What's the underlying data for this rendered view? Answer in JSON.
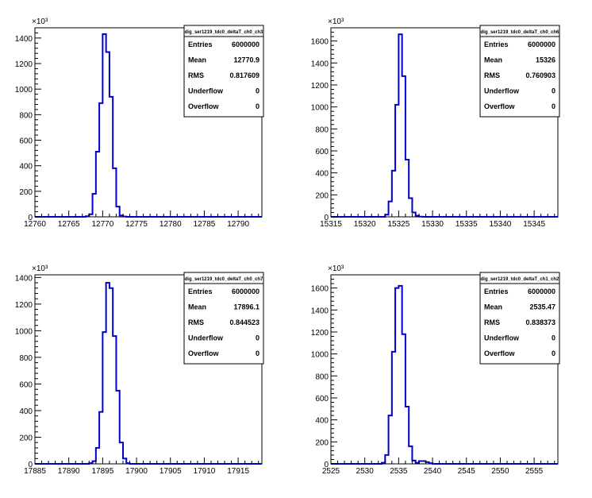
{
  "chart_data": [
    {
      "type": "bar",
      "title": "dig_ser1219_tdc0_deltaT_ch0_ch3",
      "ylabel_multiplier": "×10³",
      "xlim": [
        12760,
        12793.5
      ],
      "ylim": [
        0,
        1480
      ],
      "x_ticks": [
        "12760",
        "12765",
        "12770",
        "12775",
        "12780",
        "12785",
        "12790"
      ],
      "x_tick_values": [
        12760,
        12765,
        12770,
        12775,
        12780,
        12785,
        12790
      ],
      "y_ticks": [
        "0",
        "200",
        "400",
        "600",
        "800",
        "1000",
        "1200",
        "1400"
      ],
      "y_tick_values": [
        0,
        200,
        400,
        600,
        800,
        1000,
        1200,
        1400
      ],
      "bin_width": 0.5,
      "bins_start": [
        12767.5,
        12768,
        12768.5,
        12769,
        12769.5,
        12770,
        12770.5,
        12771,
        12771.5,
        12772,
        12772.5,
        12773
      ],
      "values": [
        5,
        20,
        180,
        510,
        890,
        1430,
        1290,
        940,
        380,
        80,
        10,
        2
      ],
      "stats": {
        "entries_label": "Entries",
        "entries": "6000000",
        "mean_label": "Mean",
        "mean": "12770.9",
        "rms_label": "RMS",
        "rms": "0.817609",
        "underflow_label": "Underflow",
        "underflow": "0",
        "overflow_label": "Overflow",
        "overflow": "0"
      }
    },
    {
      "type": "bar",
      "title": "dig_ser1219_tdc0_deltaT_ch0_ch6",
      "ylabel_multiplier": "×10³",
      "xlim": [
        15315,
        15348.5
      ],
      "ylim": [
        0,
        1720
      ],
      "x_ticks": [
        "15315",
        "15320",
        "15325",
        "15330",
        "15335",
        "15340",
        "15345"
      ],
      "x_tick_values": [
        15315,
        15320,
        15325,
        15330,
        15335,
        15340,
        15345
      ],
      "y_ticks": [
        "0",
        "200",
        "400",
        "600",
        "800",
        "1000",
        "1200",
        "1400",
        "1600"
      ],
      "y_tick_values": [
        0,
        200,
        400,
        600,
        800,
        1000,
        1200,
        1400,
        1600
      ],
      "bin_width": 0.5,
      "bins_start": [
        15323,
        15323.5,
        15324,
        15324.5,
        15325,
        15325.5,
        15326,
        15326.5,
        15327,
        15327.5,
        15328
      ],
      "values": [
        20,
        140,
        420,
        1020,
        1660,
        1280,
        520,
        170,
        40,
        10,
        2
      ],
      "stats": {
        "entries_label": "Entries",
        "entries": "6000000",
        "mean_label": "Mean",
        "mean": "15326",
        "rms_label": "RMS",
        "rms": "0.760903",
        "underflow_label": "Underflow",
        "underflow": "0",
        "overflow_label": "Overflow",
        "overflow": "0"
      }
    },
    {
      "type": "bar",
      "title": "dig_ser1219_tdc0_deltaT_ch0_ch7",
      "ylabel_multiplier": "×10³",
      "xlim": [
        17885,
        17918.5
      ],
      "ylim": [
        0,
        1420
      ],
      "x_ticks": [
        "17885",
        "17890",
        "17895",
        "17900",
        "17905",
        "17910",
        "17915"
      ],
      "x_tick_values": [
        17885,
        17890,
        17895,
        17900,
        17905,
        17910,
        17915
      ],
      "y_ticks": [
        "0",
        "200",
        "400",
        "600",
        "800",
        "1000",
        "1200",
        "1400"
      ],
      "y_tick_values": [
        0,
        200,
        400,
        600,
        800,
        1000,
        1200,
        1400
      ],
      "bin_width": 0.5,
      "bins_start": [
        17893,
        17893.5,
        17894,
        17894.5,
        17895,
        17895.5,
        17896,
        17896.5,
        17897,
        17897.5,
        17898,
        17898.5
      ],
      "values": [
        5,
        20,
        120,
        390,
        990,
        1360,
        1320,
        960,
        550,
        160,
        40,
        5
      ],
      "stats": {
        "entries_label": "Entries",
        "entries": "6000000",
        "mean_label": "Mean",
        "mean": "17896.1",
        "rms_label": "RMS",
        "rms": "0.844523",
        "underflow_label": "Underflow",
        "underflow": "0",
        "overflow_label": "Overflow",
        "overflow": "0"
      }
    },
    {
      "type": "bar",
      "title": "dig_ser1219_tdc0_deltaT_ch1_ch2",
      "ylabel_multiplier": "×10³",
      "xlim": [
        2525,
        2558.5
      ],
      "ylim": [
        0,
        1720
      ],
      "x_ticks": [
        "2525",
        "2530",
        "2535",
        "2540",
        "2545",
        "2550",
        "2555"
      ],
      "x_tick_values": [
        2525,
        2530,
        2535,
        2540,
        2545,
        2550,
        2555
      ],
      "y_ticks": [
        "0",
        "200",
        "400",
        "600",
        "800",
        "1000",
        "1200",
        "1400",
        "1600"
      ],
      "y_tick_values": [
        0,
        200,
        400,
        600,
        800,
        1000,
        1200,
        1400,
        1600
      ],
      "bin_width": 0.5,
      "bins_start": [
        2532.5,
        2533,
        2533.5,
        2534,
        2534.5,
        2535,
        2535.5,
        2536,
        2536.5,
        2537,
        2537.5,
        2538,
        2538.5,
        2539,
        2539.5
      ],
      "values": [
        10,
        80,
        440,
        1020,
        1600,
        1620,
        1180,
        520,
        160,
        30,
        10,
        25,
        25,
        15,
        5
      ],
      "stats": {
        "entries_label": "Entries",
        "entries": "6000000",
        "mean_label": "Mean",
        "mean": "2535.47",
        "rms_label": "RMS",
        "rms": "0.838373",
        "underflow_label": "Underflow",
        "underflow": "0",
        "overflow_label": "Overflow",
        "overflow": "0"
      }
    }
  ]
}
